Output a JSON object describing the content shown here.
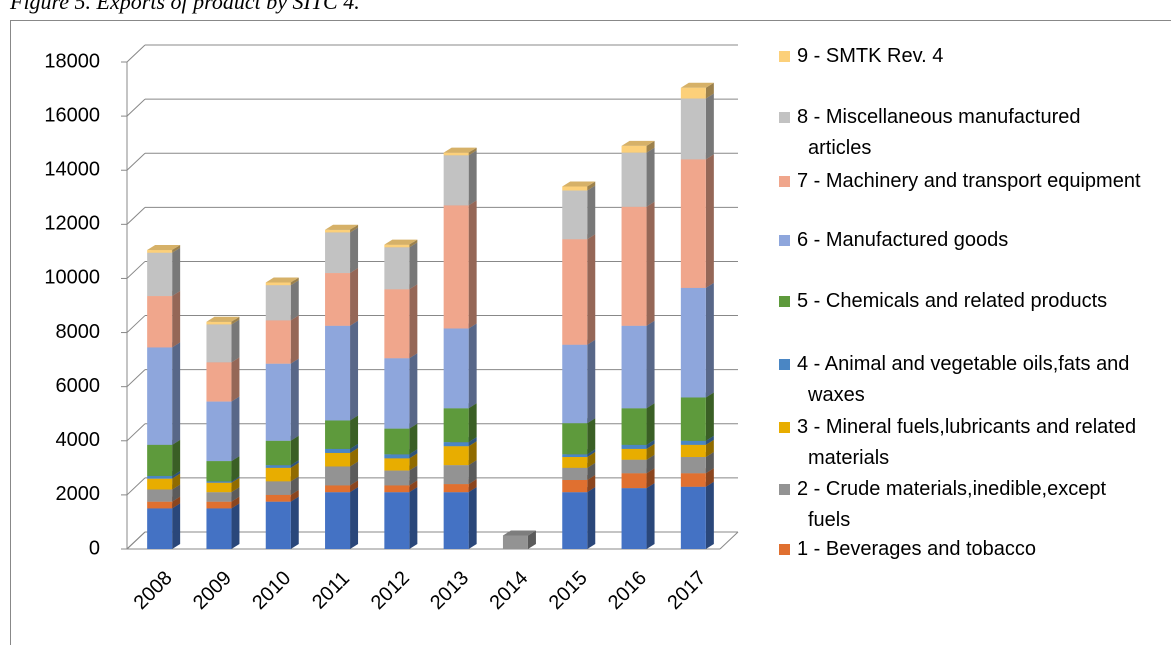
{
  "chart_data": {
    "type": "bar3d_stacked",
    "title": "Figure 5. Exports of product by SITC 4.",
    "categories": [
      "2008",
      "2009",
      "2010",
      "2011",
      "2012",
      "2013",
      "2014",
      "2015",
      "2016",
      "2017"
    ],
    "ylim": [
      0,
      18000
    ],
    "yticks": [
      0,
      2000,
      4000,
      6000,
      8000,
      10000,
      12000,
      14000,
      16000,
      18000
    ],
    "grid": true,
    "legend": "right",
    "series": [
      {
        "name": null,
        "color": "#4472c4",
        "values": [
          1500,
          1500,
          1750,
          2100,
          2100,
          2100,
          0,
          2100,
          2250,
          2300
        ]
      },
      {
        "name": "1 - Beverages and tobacco",
        "color": "#e07030",
        "values": [
          250,
          250,
          250,
          250,
          250,
          300,
          0,
          450,
          550,
          500
        ]
      },
      {
        "name": "2 - Crude materials,inedible,except fuels",
        "color": "#939393",
        "values": [
          450,
          350,
          500,
          700,
          550,
          700,
          500,
          450,
          500,
          600
        ]
      },
      {
        "name": "3 - Mineral fuels,lubricants and related materials",
        "color": "#e8ad00",
        "values": [
          400,
          350,
          500,
          500,
          450,
          700,
          0,
          400,
          400,
          450
        ]
      },
      {
        "name": "4 - Animal and vegetable oils,fats and waxes",
        "color": "#4a86c4",
        "values": [
          100,
          50,
          100,
          150,
          150,
          150,
          0,
          100,
          150,
          150
        ]
      },
      {
        "name": "5 - Chemicals and related products",
        "color": "#5e9a3c",
        "values": [
          1150,
          750,
          900,
          1050,
          950,
          1250,
          0,
          1150,
          1350,
          1600
        ]
      },
      {
        "name": "6 - Manufactured goods",
        "color": "#8ea6dc",
        "values": [
          3600,
          2200,
          2850,
          3500,
          2600,
          2950,
          0,
          2900,
          3050,
          4050
        ]
      },
      {
        "name": "7 - Machinery and transport equipment",
        "color": "#f0a68c",
        "values": [
          1900,
          1450,
          1600,
          1950,
          2550,
          4550,
          0,
          3900,
          4400,
          4750
        ]
      },
      {
        "name": "8 - Miscellaneous manufactured articles",
        "color": "#c2c2c2",
        "values": [
          1600,
          1400,
          1300,
          1500,
          1550,
          1850,
          0,
          1800,
          2000,
          2250
        ]
      },
      {
        "name": "9 - SMTK Rev. 4",
        "color": "#fcd07a",
        "values": [
          100,
          100,
          100,
          100,
          100,
          100,
          0,
          150,
          250,
          400
        ]
      }
    ]
  }
}
